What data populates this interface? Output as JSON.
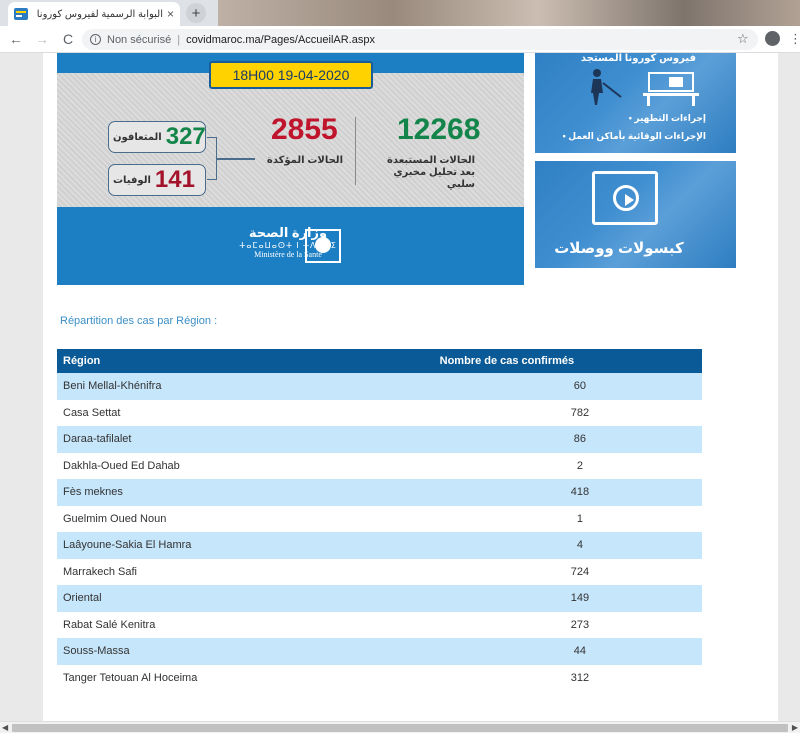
{
  "browser": {
    "tab_title": "البوابة الرسمية لفيروس كورونا بالمغرب",
    "tab_close": "×",
    "new_tab": "+",
    "back": "←",
    "forward": "→",
    "reload": "C",
    "security_label": "Non sécurisé",
    "separator": "|",
    "url": "covidmaroc.ma/Pages/AccueilAR.aspx",
    "bookmark_star": "☆",
    "menu": "⋮"
  },
  "banner": {
    "date": "18H00   19-04-2020",
    "tested_negative_value": "12268",
    "tested_negative_label": "الحالات المستبعدة بعد تحليل مخبري سلبي",
    "confirmed_value": "2855",
    "confirmed_label": "الحالات المؤكدة",
    "recovered_value": "327",
    "recovered_label": "المتعافون",
    "deaths_value": "141",
    "deaths_label": "الوفيات",
    "ministry_ar": "وزارة الصحة",
    "ministry_tifinagh": "ⵜⴰⵎⴰⵡⴰⵙⵜ ⵏ ⵜⴷⵓⵙⵉ",
    "ministry_fr": "Ministère de la Santé"
  },
  "side_cards": {
    "card1_title": "فيروس كورونا المستجد",
    "card1_bullet1": "إجراءات التطهير •",
    "card1_bullet2": "الإجراءات الوقائية بأماكن العمل •",
    "card2_title": "كبسولات ووصلات"
  },
  "section": {
    "title": "Répartition des cas par Région :"
  },
  "table": {
    "headers": [
      "Région",
      "Nombre de cas confirmés"
    ],
    "rows": [
      {
        "region": "Beni Mellal-Khénifra",
        "cases": "60"
      },
      {
        "region": "Casa Settat",
        "cases": "782"
      },
      {
        "region": "Daraa-tafilalet",
        "cases": "86"
      },
      {
        "region": "Dakhla-Oued Ed Dahab",
        "cases": "2"
      },
      {
        "region": "Fès meknes",
        "cases": "418"
      },
      {
        "region": "Guelmim Oued Noun",
        "cases": "1"
      },
      {
        "region": "Laâyoune-Sakia El Hamra",
        "cases": "4"
      },
      {
        "region": "Marrakech Safi",
        "cases": "724"
      },
      {
        "region": "Oriental",
        "cases": "149"
      },
      {
        "region": "Rabat Salé Kenitra",
        "cases": "273"
      },
      {
        "region": "Souss-Massa",
        "cases": "44"
      },
      {
        "region": "Tanger Tetouan Al Hoceima",
        "cases": "312"
      }
    ]
  },
  "colors": {
    "banner_blue": "#1c7fc3",
    "date_yellow": "#ffd200",
    "tested_green": "#14854a",
    "confirmed_red": "#c0142c",
    "table_header": "#0a5a97",
    "table_row_alt": "#c6e6fb",
    "section_title": "#3b8fc7"
  },
  "icons": {
    "favicon": "site-favicon",
    "info": "info-icon",
    "disinfection": "disinfection-worker-icon",
    "office": "office-desk-icon",
    "video": "video-play-icon"
  }
}
